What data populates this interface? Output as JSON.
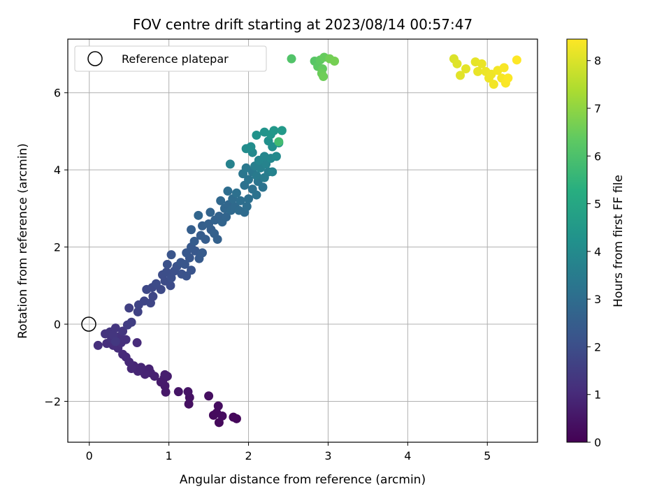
{
  "chart_data": {
    "type": "scatter",
    "title": "FOV centre drift starting at 2023/08/14 00:57:47",
    "xlabel": "Angular distance from reference (arcmin)",
    "ylabel": "Rotation from reference (arcmin)",
    "xlim": [
      -0.27,
      5.63
    ],
    "ylim": [
      -3.06,
      7.39
    ],
    "xticks": [
      "0",
      "1",
      "2",
      "3",
      "4",
      "5"
    ],
    "yticks": [
      "−2",
      "0",
      "2",
      "4",
      "6"
    ],
    "grid": true,
    "colormap": "viridis",
    "colorbar": {
      "label": "Hours from first FF file",
      "range": [
        0,
        8.45
      ],
      "ticks": [
        "0",
        "1",
        "2",
        "3",
        "4",
        "5",
        "6",
        "7",
        "8"
      ]
    },
    "legend": {
      "position": "top-left",
      "entries": [
        "Reference platepar"
      ]
    },
    "reference_point": {
      "x": 0,
      "y": 0
    },
    "points": [
      {
        "x": 1.85,
        "y": -2.45,
        "t": 0.15
      },
      {
        "x": 1.81,
        "y": -2.41,
        "t": 0.18
      },
      {
        "x": 1.63,
        "y": -2.55,
        "t": 0.2
      },
      {
        "x": 1.56,
        "y": -2.36,
        "t": 0.22
      },
      {
        "x": 1.6,
        "y": -2.3,
        "t": 0.25
      },
      {
        "x": 1.67,
        "y": -2.38,
        "t": 0.27
      },
      {
        "x": 1.62,
        "y": -2.12,
        "t": 0.3
      },
      {
        "x": 1.5,
        "y": -1.86,
        "t": 0.33
      },
      {
        "x": 1.25,
        "y": -2.07,
        "t": 0.36
      },
      {
        "x": 1.26,
        "y": -1.9,
        "t": 0.4
      },
      {
        "x": 1.24,
        "y": -1.75,
        "t": 0.45
      },
      {
        "x": 1.12,
        "y": -1.75,
        "t": 0.48
      },
      {
        "x": 0.96,
        "y": -1.76,
        "t": 0.55
      },
      {
        "x": 0.95,
        "y": -1.6,
        "t": 0.6
      },
      {
        "x": 0.9,
        "y": -1.5,
        "t": 0.62
      },
      {
        "x": 0.94,
        "y": -1.4,
        "t": 0.65
      },
      {
        "x": 0.98,
        "y": -1.35,
        "t": 0.68
      },
      {
        "x": 0.95,
        "y": -1.31,
        "t": 0.7
      },
      {
        "x": 0.82,
        "y": -1.35,
        "t": 0.75
      },
      {
        "x": 0.77,
        "y": -1.26,
        "t": 0.78
      },
      {
        "x": 0.75,
        "y": -1.16,
        "t": 0.8
      },
      {
        "x": 0.7,
        "y": -1.3,
        "t": 0.83
      },
      {
        "x": 0.65,
        "y": -1.12,
        "t": 0.86
      },
      {
        "x": 0.61,
        "y": -1.22,
        "t": 0.88
      },
      {
        "x": 0.56,
        "y": -1.08,
        "t": 0.9
      },
      {
        "x": 0.53,
        "y": -1.15,
        "t": 0.93
      },
      {
        "x": 0.5,
        "y": -0.98,
        "t": 0.95
      },
      {
        "x": 0.46,
        "y": -0.85,
        "t": 0.98
      },
      {
        "x": 0.42,
        "y": -0.78,
        "t": 1.0
      },
      {
        "x": 0.6,
        "y": -0.48,
        "t": 1.02
      },
      {
        "x": 0.36,
        "y": -0.62,
        "t": 1.05
      },
      {
        "x": 0.3,
        "y": -0.55,
        "t": 1.08
      },
      {
        "x": 0.22,
        "y": -0.5,
        "t": 1.1
      },
      {
        "x": 0.11,
        "y": -0.55,
        "t": 1.12
      },
      {
        "x": 0.4,
        "y": -0.48,
        "t": 1.15
      },
      {
        "x": 0.46,
        "y": -0.4,
        "t": 1.18
      },
      {
        "x": 0.38,
        "y": -0.32,
        "t": 1.2
      },
      {
        "x": 0.28,
        "y": -0.38,
        "t": 1.22
      },
      {
        "x": 0.2,
        "y": -0.25,
        "t": 1.25
      },
      {
        "x": 0.26,
        "y": -0.2,
        "t": 1.28
      },
      {
        "x": 0.33,
        "y": -0.1,
        "t": 1.3
      },
      {
        "x": 0.3,
        "y": -0.28,
        "t": 1.32
      },
      {
        "x": 0.42,
        "y": -0.18,
        "t": 1.35
      },
      {
        "x": 0.33,
        "y": -0.45,
        "t": 1.38
      },
      {
        "x": 0.48,
        "y": -0.02,
        "t": 1.5
      },
      {
        "x": 0.53,
        "y": 0.05,
        "t": 1.55
      },
      {
        "x": 0.5,
        "y": 0.42,
        "t": 1.6
      },
      {
        "x": 0.61,
        "y": 0.32,
        "t": 1.65
      },
      {
        "x": 0.62,
        "y": 0.5,
        "t": 1.7
      },
      {
        "x": 0.69,
        "y": 0.6,
        "t": 1.75
      },
      {
        "x": 0.77,
        "y": 0.55,
        "t": 1.78
      },
      {
        "x": 0.8,
        "y": 0.72,
        "t": 1.8
      },
      {
        "x": 0.72,
        "y": 0.9,
        "t": 1.82
      },
      {
        "x": 0.79,
        "y": 0.95,
        "t": 1.85
      },
      {
        "x": 0.9,
        "y": 0.9,
        "t": 1.88
      },
      {
        "x": 0.84,
        "y": 1.05,
        "t": 1.9
      },
      {
        "x": 0.95,
        "y": 1.12,
        "t": 1.93
      },
      {
        "x": 1.02,
        "y": 1.0,
        "t": 1.95
      },
      {
        "x": 0.92,
        "y": 1.28,
        "t": 1.98
      },
      {
        "x": 0.97,
        "y": 1.35,
        "t": 2.0
      },
      {
        "x": 1.03,
        "y": 1.2,
        "t": 2.02
      },
      {
        "x": 1.07,
        "y": 1.38,
        "t": 2.05
      },
      {
        "x": 0.98,
        "y": 1.55,
        "t": 2.07
      },
      {
        "x": 1.1,
        "y": 1.5,
        "t": 2.1
      },
      {
        "x": 1.16,
        "y": 1.3,
        "t": 2.12
      },
      {
        "x": 1.22,
        "y": 1.25,
        "t": 2.15
      },
      {
        "x": 1.28,
        "y": 1.4,
        "t": 2.17
      },
      {
        "x": 1.03,
        "y": 1.8,
        "t": 2.2
      },
      {
        "x": 1.15,
        "y": 1.6,
        "t": 2.22
      },
      {
        "x": 1.2,
        "y": 1.55,
        "t": 2.25
      },
      {
        "x": 1.26,
        "y": 1.72,
        "t": 2.28
      },
      {
        "x": 1.22,
        "y": 1.85,
        "t": 2.3
      },
      {
        "x": 1.33,
        "y": 1.9,
        "t": 2.32
      },
      {
        "x": 1.28,
        "y": 2.0,
        "t": 2.35
      },
      {
        "x": 1.38,
        "y": 1.7,
        "t": 2.38
      },
      {
        "x": 1.42,
        "y": 1.85,
        "t": 2.4
      },
      {
        "x": 1.32,
        "y": 2.15,
        "t": 2.43
      },
      {
        "x": 1.4,
        "y": 2.3,
        "t": 2.45
      },
      {
        "x": 1.46,
        "y": 2.2,
        "t": 2.48
      },
      {
        "x": 1.53,
        "y": 2.45,
        "t": 2.5
      },
      {
        "x": 1.28,
        "y": 2.45,
        "t": 2.52
      },
      {
        "x": 1.42,
        "y": 2.55,
        "t": 2.55
      },
      {
        "x": 1.5,
        "y": 2.6,
        "t": 2.57
      },
      {
        "x": 1.57,
        "y": 2.35,
        "t": 2.6
      },
      {
        "x": 1.61,
        "y": 2.2,
        "t": 2.62
      },
      {
        "x": 1.58,
        "y": 2.7,
        "t": 2.65
      },
      {
        "x": 1.63,
        "y": 2.8,
        "t": 2.68
      },
      {
        "x": 1.52,
        "y": 2.9,
        "t": 2.7
      },
      {
        "x": 1.67,
        "y": 2.65,
        "t": 2.72
      },
      {
        "x": 1.72,
        "y": 2.78,
        "t": 2.75
      },
      {
        "x": 1.37,
        "y": 2.82,
        "t": 2.78
      },
      {
        "x": 1.7,
        "y": 3.0,
        "t": 2.8
      },
      {
        "x": 1.75,
        "y": 3.1,
        "t": 2.82
      },
      {
        "x": 1.65,
        "y": 3.2,
        "t": 2.85
      },
      {
        "x": 1.78,
        "y": 2.95,
        "t": 2.88
      },
      {
        "x": 1.83,
        "y": 3.05,
        "t": 2.9
      },
      {
        "x": 1.88,
        "y": 2.95,
        "t": 2.93
      },
      {
        "x": 1.95,
        "y": 2.9,
        "t": 2.95
      },
      {
        "x": 1.8,
        "y": 3.25,
        "t": 2.98
      },
      {
        "x": 1.74,
        "y": 3.45,
        "t": 3.0
      },
      {
        "x": 1.9,
        "y": 3.2,
        "t": 3.03
      },
      {
        "x": 1.98,
        "y": 3.05,
        "t": 3.05
      },
      {
        "x": 2.0,
        "y": 3.25,
        "t": 3.07
      },
      {
        "x": 1.85,
        "y": 3.4,
        "t": 3.1
      },
      {
        "x": 2.05,
        "y": 3.5,
        "t": 3.12
      },
      {
        "x": 1.95,
        "y": 3.6,
        "t": 3.15
      },
      {
        "x": 2.1,
        "y": 3.35,
        "t": 3.17
      },
      {
        "x": 2.18,
        "y": 3.55,
        "t": 3.2
      },
      {
        "x": 2.0,
        "y": 3.75,
        "t": 3.22
      },
      {
        "x": 2.12,
        "y": 3.7,
        "t": 3.25
      },
      {
        "x": 1.93,
        "y": 3.9,
        "t": 3.3
      },
      {
        "x": 2.05,
        "y": 3.95,
        "t": 3.35
      },
      {
        "x": 1.97,
        "y": 4.05,
        "t": 3.4
      },
      {
        "x": 2.1,
        "y": 3.85,
        "t": 3.45
      },
      {
        "x": 2.2,
        "y": 3.8,
        "t": 3.5
      },
      {
        "x": 2.25,
        "y": 3.95,
        "t": 3.55
      },
      {
        "x": 2.08,
        "y": 4.1,
        "t": 3.6
      },
      {
        "x": 2.15,
        "y": 4.05,
        "t": 3.65
      },
      {
        "x": 2.3,
        "y": 3.95,
        "t": 3.7
      },
      {
        "x": 1.77,
        "y": 4.15,
        "t": 3.72
      },
      {
        "x": 2.22,
        "y": 4.15,
        "t": 3.75
      },
      {
        "x": 2.13,
        "y": 4.25,
        "t": 3.8
      },
      {
        "x": 2.2,
        "y": 4.35,
        "t": 3.85
      },
      {
        "x": 2.28,
        "y": 4.3,
        "t": 3.9
      },
      {
        "x": 2.05,
        "y": 4.45,
        "t": 3.95
      },
      {
        "x": 2.35,
        "y": 4.35,
        "t": 4.0
      },
      {
        "x": 1.97,
        "y": 4.55,
        "t": 4.05
      },
      {
        "x": 2.03,
        "y": 4.6,
        "t": 4.1
      },
      {
        "x": 2.3,
        "y": 4.6,
        "t": 4.15
      },
      {
        "x": 2.25,
        "y": 4.75,
        "t": 4.2
      },
      {
        "x": 2.38,
        "y": 4.7,
        "t": 4.25
      },
      {
        "x": 2.1,
        "y": 4.9,
        "t": 4.3
      },
      {
        "x": 2.2,
        "y": 4.98,
        "t": 4.35
      },
      {
        "x": 2.28,
        "y": 4.92,
        "t": 4.4
      },
      {
        "x": 2.32,
        "y": 5.02,
        "t": 4.45
      },
      {
        "x": 2.42,
        "y": 5.02,
        "t": 4.5
      },
      {
        "x": 2.38,
        "y": 4.73,
        "t": 5.8
      },
      {
        "x": 2.54,
        "y": 6.88,
        "t": 6.1
      },
      {
        "x": 2.83,
        "y": 6.82,
        "t": 6.2
      },
      {
        "x": 2.87,
        "y": 6.68,
        "t": 6.3
      },
      {
        "x": 2.9,
        "y": 6.85,
        "t": 6.35
      },
      {
        "x": 2.93,
        "y": 6.62,
        "t": 6.4
      },
      {
        "x": 2.95,
        "y": 6.92,
        "t": 6.45
      },
      {
        "x": 2.92,
        "y": 6.5,
        "t": 6.5
      },
      {
        "x": 2.94,
        "y": 6.42,
        "t": 6.55
      },
      {
        "x": 3.02,
        "y": 6.88,
        "t": 6.6
      },
      {
        "x": 3.08,
        "y": 6.82,
        "t": 6.65
      },
      {
        "x": 4.58,
        "y": 6.88,
        "t": 8.0
      },
      {
        "x": 4.62,
        "y": 6.75,
        "t": 8.05
      },
      {
        "x": 4.66,
        "y": 6.45,
        "t": 8.1
      },
      {
        "x": 4.73,
        "y": 6.62,
        "t": 8.12
      },
      {
        "x": 4.85,
        "y": 6.8,
        "t": 8.15
      },
      {
        "x": 4.88,
        "y": 6.55,
        "t": 8.18
      },
      {
        "x": 4.93,
        "y": 6.75,
        "t": 8.2
      },
      {
        "x": 4.98,
        "y": 6.55,
        "t": 8.22
      },
      {
        "x": 5.02,
        "y": 6.38,
        "t": 8.25
      },
      {
        "x": 5.05,
        "y": 6.48,
        "t": 8.27
      },
      {
        "x": 5.08,
        "y": 6.22,
        "t": 8.3
      },
      {
        "x": 5.13,
        "y": 6.58,
        "t": 8.32
      },
      {
        "x": 5.18,
        "y": 6.38,
        "t": 8.35
      },
      {
        "x": 5.21,
        "y": 6.65,
        "t": 8.38
      },
      {
        "x": 5.23,
        "y": 6.25,
        "t": 8.4
      },
      {
        "x": 5.26,
        "y": 6.38,
        "t": 8.42
      },
      {
        "x": 5.37,
        "y": 6.85,
        "t": 8.45
      }
    ]
  }
}
